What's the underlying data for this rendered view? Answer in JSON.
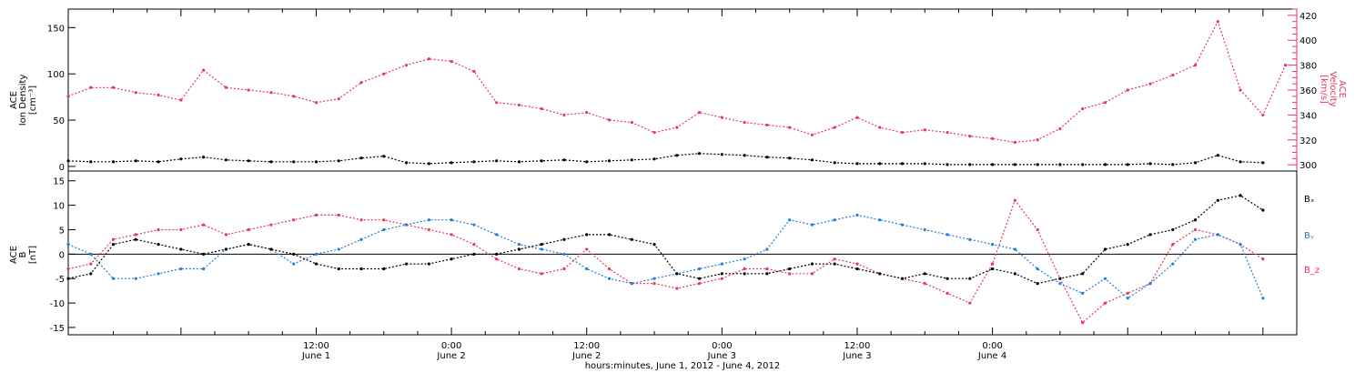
{
  "colors": {
    "density": "#000000",
    "velocity": "#e8365d",
    "bx": "#000000",
    "by": "#1f7fd9",
    "bz": "#e8365d",
    "frame": "#000000"
  },
  "chart_data": [
    {
      "type": "scatter",
      "panel": "top",
      "ylabel_lines": [
        "ACE",
        "Ion Density",
        "[cm⁻³]"
      ],
      "ylabel2_lines": [
        "ACE",
        "Velocity",
        "[km/s]"
      ],
      "xlim": [
        -22,
        87
      ],
      "ylim": [
        -5,
        170
      ],
      "y2lim": [
        295,
        425
      ],
      "yticks": [
        0,
        50,
        100,
        150
      ],
      "y2ticks": [
        300,
        320,
        340,
        360,
        380,
        400,
        420
      ],
      "series": [
        {
          "key": "density",
          "axis": "left",
          "x": [
            -22,
            -20,
            -18,
            -16,
            -14,
            -12,
            -10,
            -8,
            -6,
            -4,
            -2,
            0,
            2,
            4,
            6,
            8,
            10,
            12,
            14,
            16,
            18,
            20,
            22,
            24,
            26,
            28,
            30,
            32,
            34,
            36,
            38,
            40,
            42,
            44,
            46,
            48,
            50,
            52,
            54,
            56,
            58,
            60,
            62,
            64,
            66,
            68,
            70,
            72,
            74,
            76,
            78,
            80,
            82,
            84
          ],
          "y": [
            6,
            5,
            5,
            6,
            5,
            8,
            10,
            7,
            6,
            5,
            5,
            5,
            6,
            9,
            11,
            4,
            3,
            4,
            5,
            6,
            5,
            6,
            7,
            5,
            6,
            7,
            8,
            12,
            14,
            13,
            12,
            10,
            9,
            7,
            4,
            3,
            3,
            3,
            3,
            2,
            2,
            2,
            2,
            2,
            2,
            2,
            2,
            2,
            3,
            2,
            4,
            12,
            5,
            4
          ]
        },
        {
          "key": "velocity",
          "axis": "right",
          "x": [
            -22,
            -20,
            -18,
            -16,
            -14,
            -12,
            -10,
            -8,
            -6,
            -4,
            -2,
            0,
            2,
            4,
            6,
            8,
            10,
            12,
            14,
            16,
            18,
            20,
            22,
            24,
            26,
            28,
            30,
            32,
            34,
            36,
            38,
            40,
            42,
            44,
            46,
            48,
            50,
            52,
            54,
            56,
            58,
            60,
            62,
            64,
            66,
            68,
            70,
            72,
            74,
            76,
            78,
            80,
            82,
            84,
            86
          ],
          "y": [
            355,
            362,
            362,
            358,
            356,
            352,
            376,
            362,
            360,
            358,
            355,
            350,
            353,
            366,
            373,
            380,
            385,
            383,
            375,
            350,
            348,
            345,
            340,
            342,
            336,
            334,
            326,
            330,
            342,
            338,
            334,
            332,
            330,
            324,
            330,
            338,
            330,
            326,
            328,
            326,
            323,
            321,
            318,
            320,
            329,
            345,
            350,
            360,
            365,
            372,
            380,
            415,
            360,
            340,
            380
          ]
        }
      ]
    },
    {
      "type": "scatter",
      "panel": "bottom",
      "ylabel_lines": [
        "ACE",
        "B",
        "[nT]"
      ],
      "xlim": [
        -22,
        87
      ],
      "ylim": [
        -16.5,
        17
      ],
      "yticks": [
        -15,
        -10,
        -5,
        0,
        5,
        10,
        15
      ],
      "series": [
        {
          "key": "bx",
          "legend": "Bₓ",
          "x": [
            -22,
            -20,
            -18,
            -16,
            -14,
            -12,
            -10,
            -8,
            -6,
            -4,
            -2,
            0,
            2,
            4,
            6,
            8,
            10,
            12,
            14,
            16,
            18,
            20,
            22,
            24,
            26,
            28,
            30,
            32,
            34,
            36,
            38,
            40,
            42,
            44,
            46,
            48,
            50,
            52,
            54,
            56,
            58,
            60,
            62,
            64,
            66,
            68,
            70,
            72,
            74,
            76,
            78,
            80,
            82,
            84
          ],
          "y": [
            -5,
            -4,
            2,
            3,
            2,
            1,
            0,
            1,
            2,
            1,
            0,
            -2,
            -3,
            -3,
            -3,
            -2,
            -2,
            -1,
            0,
            0,
            1,
            2,
            3,
            4,
            4,
            3,
            2,
            -4,
            -5,
            -4,
            -4,
            -4,
            -3,
            -2,
            -2,
            -3,
            -4,
            -5,
            -4,
            -5,
            -5,
            -3,
            -4,
            -6,
            -5,
            -4,
            1,
            2,
            4,
            5,
            7,
            11,
            12,
            9
          ]
        },
        {
          "key": "by",
          "legend": "Bᵧ",
          "x": [
            -22,
            -20,
            -18,
            -16,
            -14,
            -12,
            -10,
            -8,
            -6,
            -4,
            -2,
            0,
            2,
            4,
            6,
            8,
            10,
            12,
            14,
            16,
            18,
            20,
            22,
            24,
            26,
            28,
            30,
            32,
            34,
            36,
            38,
            40,
            42,
            44,
            46,
            48,
            50,
            52,
            54,
            56,
            58,
            60,
            62,
            64,
            66,
            68,
            70,
            72,
            74,
            76,
            78,
            80,
            82,
            84
          ],
          "y": [
            2,
            0,
            -5,
            -5,
            -4,
            -3,
            -3,
            1,
            2,
            1,
            -2,
            0,
            1,
            3,
            5,
            6,
            7,
            7,
            6,
            4,
            2,
            1,
            0,
            -3,
            -5,
            -6,
            -5,
            -4,
            -3,
            -2,
            -1,
            1,
            7,
            6,
            7,
            8,
            7,
            6,
            5,
            4,
            3,
            2,
            1,
            -3,
            -6,
            -8,
            -5,
            -9,
            -6,
            -2,
            3,
            4,
            2,
            -9
          ]
        },
        {
          "key": "bz",
          "legend": "B_z",
          "x": [
            -22,
            -20,
            -18,
            -16,
            -14,
            -12,
            -10,
            -8,
            -6,
            -4,
            -2,
            0,
            2,
            4,
            6,
            8,
            10,
            12,
            14,
            16,
            18,
            20,
            22,
            24,
            26,
            28,
            30,
            32,
            34,
            36,
            38,
            40,
            42,
            44,
            46,
            48,
            50,
            52,
            54,
            56,
            58,
            60,
            62,
            64,
            66,
            68,
            70,
            72,
            74,
            76,
            78,
            80,
            82,
            84
          ],
          "y": [
            -3,
            -2,
            3,
            4,
            5,
            5,
            6,
            4,
            5,
            6,
            7,
            8,
            8,
            7,
            7,
            6,
            5,
            4,
            2,
            -1,
            -3,
            -4,
            -3,
            1,
            -3,
            -6,
            -6,
            -7,
            -6,
            -5,
            -3,
            -3,
            -4,
            -4,
            -1,
            -2,
            -4,
            -5,
            -6,
            -8,
            -10,
            -2,
            11,
            5,
            -5,
            -14,
            -10,
            -8,
            -6,
            2,
            5,
            4,
            2,
            -1
          ]
        }
      ]
    }
  ],
  "x_axis": {
    "ticks": [
      {
        "x": 0,
        "time": "12:00",
        "date": "June 1"
      },
      {
        "x": 12,
        "time": "0:00",
        "date": "June 2"
      },
      {
        "x": 24,
        "time": "12:00",
        "date": "June 2"
      },
      {
        "x": 36,
        "time": "0:00",
        "date": "June 3"
      },
      {
        "x": 48,
        "time": "12:00",
        "date": "June 3"
      },
      {
        "x": 60,
        "time": "0:00",
        "date": "June 4"
      }
    ],
    "title": "hours:minutes, June  1, 2012 - June  4, 2012"
  }
}
